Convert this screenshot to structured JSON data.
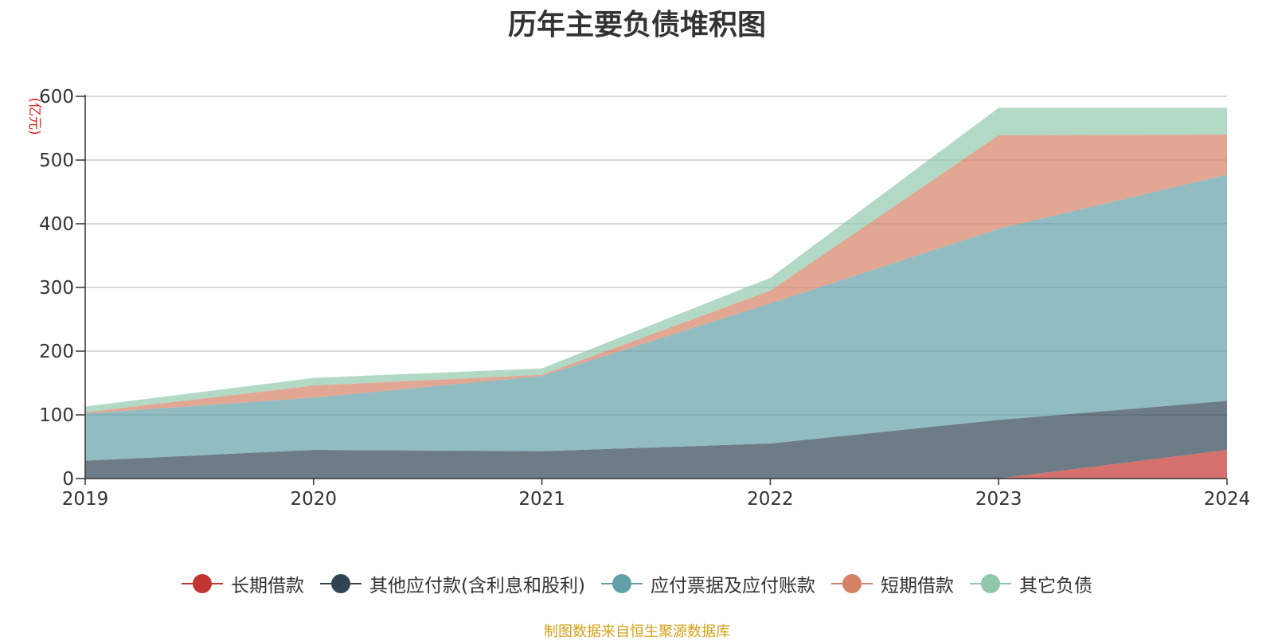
{
  "chart_data": {
    "type": "area",
    "stacked": true,
    "title": "历年主要负债堆积图",
    "ylabel": "(亿元)",
    "xlabel": "",
    "ylim": [
      0,
      600
    ],
    "yticks": [
      0,
      100,
      200,
      300,
      400,
      500,
      600
    ],
    "categories": [
      "2019",
      "2020",
      "2021",
      "2022",
      "2023",
      "2024"
    ],
    "series": [
      {
        "name": "长期借款",
        "color": "#c23531",
        "values": [
          0,
          0,
          0,
          0,
          0,
          45
        ]
      },
      {
        "name": "其他应付款(含利息和股利)",
        "color": "#2f4554",
        "values": [
          28,
          45,
          43,
          55,
          92,
          77
        ]
      },
      {
        "name": "应付票据及应付账款",
        "color": "#61a0a8",
        "values": [
          74,
          82,
          118,
          220,
          300,
          355
        ]
      },
      {
        "name": "短期借款",
        "color": "#d48265",
        "values": [
          2,
          19,
          2,
          20,
          147,
          63
        ]
      },
      {
        "name": "其它负债",
        "color": "#91c7ae",
        "values": [
          9,
          12,
          10,
          20,
          43,
          42
        ]
      }
    ],
    "legend_position": "bottom"
  },
  "source_note": "制图数据来自恒生聚源数据库"
}
